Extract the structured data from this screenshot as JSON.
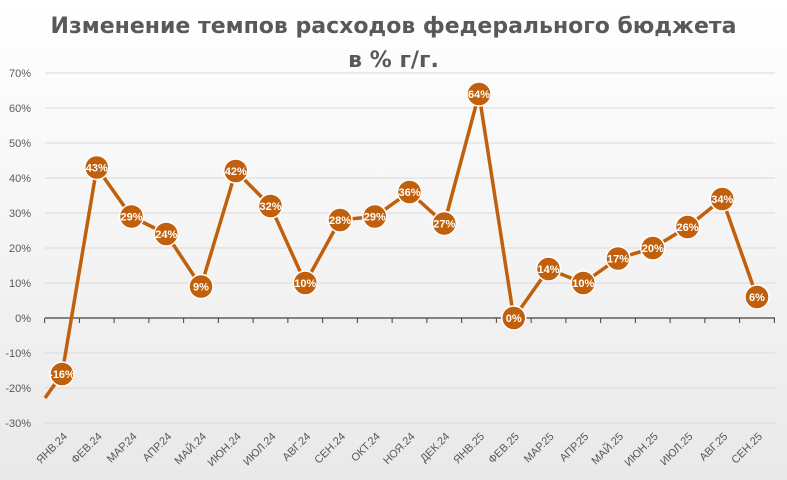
{
  "chart_data": {
    "type": "line",
    "title_line1": "Изменение темпов расходов федерального бюджета",
    "title_line2": "в % г/г.",
    "categories": [
      "ЯНВ.24",
      "ФЕВ.24",
      "МАР.24",
      "АПР.24",
      "МАЙ.24",
      "ИЮН.24",
      "ИЮЛ.24",
      "АВГ.24",
      "СЕН.24",
      "ОКТ.24",
      "НОЯ.24",
      "ДЕК.24",
      "ЯНВ.25",
      "ФЕВ.25",
      "МАР.25",
      "АПР.25",
      "МАЙ.25",
      "ИЮН.25",
      "ИЮЛ.25",
      "АВГ.25",
      "СЕН.25"
    ],
    "values": [
      -16,
      43,
      29,
      24,
      9,
      42,
      32,
      10,
      28,
      29,
      36,
      27,
      64,
      0,
      14,
      10,
      17,
      20,
      26,
      34,
      6
    ],
    "data_labels": [
      "-16%",
      "43%",
      "29%",
      "24%",
      "9%",
      "42%",
      "32%",
      "10%",
      "28%",
      "29%",
      "36%",
      "27%",
      "64%",
      "0%",
      "14%",
      "10%",
      "17%",
      "20%",
      "26%",
      "34%",
      "6%"
    ],
    "yticks": [
      "70%",
      "60%",
      "50%",
      "40%",
      "30%",
      "20%",
      "10%",
      "0%",
      "-10%",
      "-20%",
      "-30%"
    ],
    "ylim": [
      -30,
      70
    ],
    "grid": true,
    "colors": {
      "line": "#c0600c",
      "marker": "#c0600c",
      "marker_border": "#ffffff",
      "label": "#ffffff"
    }
  }
}
